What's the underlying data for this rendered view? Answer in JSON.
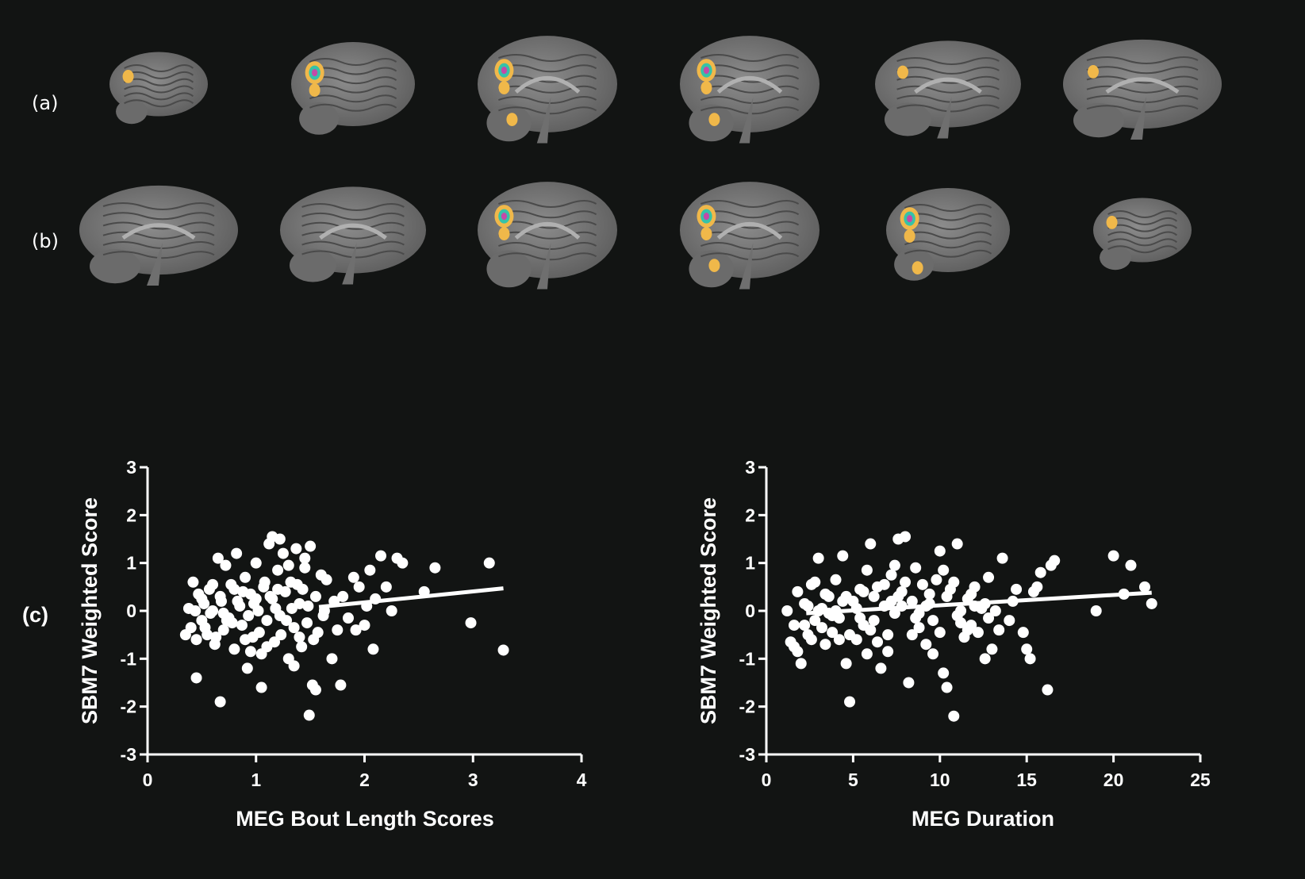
{
  "panels": {
    "a": "(a)",
    "b": "(b)",
    "c": "(c)"
  },
  "colors": {
    "background": "#121413",
    "brain": "#7f7f7f",
    "foreground": "#ffffff",
    "activation_outer": "#f0b84a",
    "activation_mid": "#36c2a8",
    "activation_core": "#c24aa8"
  },
  "brain_rows": [
    {
      "row": "a",
      "slices": [
        {
          "view": "lateral-small",
          "blobs": 1
        },
        {
          "view": "lateral",
          "blobs": 2
        },
        {
          "view": "medial-frontal",
          "blobs": 3
        },
        {
          "view": "medial-frontal",
          "blobs": 3
        },
        {
          "view": "medial",
          "blobs": 1
        },
        {
          "view": "medial-full",
          "blobs": 1
        }
      ]
    },
    {
      "row": "b",
      "slices": [
        {
          "view": "medial-full",
          "blobs": 0
        },
        {
          "view": "medial",
          "blobs": 0
        },
        {
          "view": "medial-frontal",
          "blobs": 2
        },
        {
          "view": "medial-frontal",
          "blobs": 3
        },
        {
          "view": "lateral",
          "blobs": 3
        },
        {
          "view": "lateral-small",
          "blobs": 1
        }
      ]
    }
  ],
  "chart_data": [
    {
      "type": "scatter",
      "xlabel": "MEG Bout Length Scores",
      "ylabel": "SBM7 Weighted Score",
      "xlim": [
        0,
        4
      ],
      "ylim": [
        -3,
        3
      ],
      "xticks": [
        "0",
        "1",
        "2",
        "3",
        "4"
      ],
      "yticks": [
        "-3",
        "-2",
        "-1",
        "0",
        "1",
        "2",
        "3"
      ],
      "trendline": [
        [
          1.58,
          0.08
        ],
        [
          3.28,
          0.47
        ]
      ],
      "points": [
        [
          0.38,
          0.05
        ],
        [
          0.4,
          -0.35
        ],
        [
          0.42,
          0.6
        ],
        [
          0.45,
          -0.6
        ],
        [
          0.47,
          0.35
        ],
        [
          0.5,
          -0.2
        ],
        [
          0.52,
          0.15
        ],
        [
          0.55,
          -0.5
        ],
        [
          0.57,
          0.45
        ],
        [
          0.6,
          0.0
        ],
        [
          0.62,
          -0.7
        ],
        [
          0.65,
          1.1
        ],
        [
          0.67,
          0.3
        ],
        [
          0.7,
          -0.4
        ],
        [
          0.72,
          0.95
        ],
        [
          0.75,
          -0.15
        ],
        [
          0.77,
          0.55
        ],
        [
          0.8,
          -0.8
        ],
        [
          0.82,
          1.2
        ],
        [
          0.85,
          0.1
        ],
        [
          0.87,
          -0.3
        ],
        [
          0.9,
          0.7
        ],
        [
          0.92,
          -1.2
        ],
        [
          0.95,
          0.35
        ],
        [
          0.97,
          -0.55
        ],
        [
          1.0,
          1.0
        ],
        [
          1.02,
          0.0
        ],
        [
          1.05,
          -0.9
        ],
        [
          1.07,
          0.5
        ],
        [
          1.1,
          -0.2
        ],
        [
          1.12,
          1.4
        ],
        [
          1.15,
          0.25
        ],
        [
          1.17,
          -0.65
        ],
        [
          1.2,
          0.85
        ],
        [
          1.22,
          -0.1
        ],
        [
          1.25,
          1.2
        ],
        [
          1.27,
          0.4
        ],
        [
          1.3,
          -1.0
        ],
        [
          1.32,
          0.6
        ],
        [
          1.35,
          -0.35
        ],
        [
          1.37,
          1.3
        ],
        [
          1.4,
          0.15
        ],
        [
          1.42,
          -0.75
        ],
        [
          1.45,
          0.9
        ],
        [
          1.47,
          -0.25
        ],
        [
          1.5,
          1.35
        ],
        [
          1.52,
          -1.55
        ],
        [
          1.55,
          0.3
        ],
        [
          1.57,
          -0.45
        ],
        [
          1.6,
          0.75
        ],
        [
          1.62,
          -0.1
        ],
        [
          1.65,
          0.65
        ],
        [
          1.7,
          -1.0
        ],
        [
          1.72,
          0.2
        ],
        [
          1.75,
          -0.4
        ],
        [
          1.78,
          -1.55
        ],
        [
          1.8,
          0.3
        ],
        [
          1.85,
          -0.15
        ],
        [
          1.9,
          0.7
        ],
        [
          1.92,
          -0.4
        ],
        [
          1.95,
          0.5
        ],
        [
          2.0,
          -0.3
        ],
        [
          2.02,
          0.1
        ],
        [
          2.05,
          0.85
        ],
        [
          2.08,
          -0.8
        ],
        [
          2.1,
          0.25
        ],
        [
          2.15,
          1.15
        ],
        [
          2.2,
          0.5
        ],
        [
          2.25,
          0.0
        ],
        [
          2.3,
          1.1
        ],
        [
          2.35,
          1.0
        ],
        [
          2.55,
          0.4
        ],
        [
          2.65,
          0.9
        ],
        [
          2.98,
          -0.25
        ],
        [
          3.15,
          1.0
        ],
        [
          3.28,
          -0.82
        ],
        [
          0.45,
          -1.4
        ],
        [
          0.67,
          -1.9
        ],
        [
          1.05,
          -1.6
        ],
        [
          1.49,
          -2.18
        ],
        [
          1.55,
          -1.65
        ],
        [
          0.5,
          0.25
        ],
        [
          0.58,
          -0.05
        ],
        [
          0.68,
          0.2
        ],
        [
          0.78,
          -0.25
        ],
        [
          0.88,
          0.4
        ],
        [
          0.98,
          0.15
        ],
        [
          1.08,
          0.6
        ],
        [
          1.18,
          0.05
        ],
        [
          1.28,
          -0.2
        ],
        [
          1.38,
          0.55
        ],
        [
          1.48,
          0.1
        ],
        [
          0.35,
          -0.5
        ],
        [
          0.44,
          0.0
        ],
        [
          0.53,
          -0.35
        ],
        [
          0.63,
          -0.55
        ],
        [
          0.73,
          -0.2
        ],
        [
          0.83,
          0.2
        ],
        [
          0.93,
          -0.1
        ],
        [
          1.03,
          -0.45
        ],
        [
          1.13,
          0.3
        ],
        [
          1.23,
          -0.5
        ],
        [
          1.33,
          0.05
        ],
        [
          1.43,
          0.45
        ],
        [
          1.53,
          -0.6
        ],
        [
          1.63,
          0.0
        ],
        [
          0.6,
          0.55
        ],
        [
          0.7,
          -0.05
        ],
        [
          0.8,
          0.45
        ],
        [
          0.9,
          -0.6
        ],
        [
          1.0,
          0.25
        ],
        [
          1.1,
          -0.75
        ],
        [
          1.2,
          0.45
        ],
        [
          1.3,
          0.95
        ],
        [
          1.4,
          -0.55
        ],
        [
          1.15,
          1.55
        ],
        [
          1.22,
          1.5
        ],
        [
          1.45,
          1.1
        ],
        [
          0.95,
          -0.85
        ],
        [
          1.35,
          -1.15
        ]
      ]
    },
    {
      "type": "scatter",
      "xlabel": "MEG Duration",
      "ylabel": "SBM7 Weighted Score",
      "xlim": [
        0,
        25
      ],
      "ylim": [
        -3,
        3
      ],
      "xticks": [
        "0",
        "5",
        "10",
        "15",
        "20",
        "25"
      ],
      "yticks": [
        "-3",
        "-2",
        "-1",
        "0",
        "1",
        "2",
        "3"
      ],
      "trendline": [
        [
          2.3,
          -0.05
        ],
        [
          22.2,
          0.38
        ]
      ],
      "points": [
        [
          1.2,
          0.0
        ],
        [
          1.4,
          -0.65
        ],
        [
          1.6,
          -0.3
        ],
        [
          1.8,
          0.4
        ],
        [
          2.0,
          -1.1
        ],
        [
          2.2,
          0.15
        ],
        [
          2.4,
          -0.5
        ],
        [
          2.6,
          0.55
        ],
        [
          2.8,
          -0.2
        ],
        [
          3.0,
          1.1
        ],
        [
          3.2,
          0.05
        ],
        [
          3.4,
          -0.7
        ],
        [
          3.6,
          0.3
        ],
        [
          3.8,
          -0.45
        ],
        [
          4.0,
          0.65
        ],
        [
          4.2,
          -0.15
        ],
        [
          4.4,
          1.15
        ],
        [
          4.6,
          -1.1
        ],
        [
          4.8,
          -1.9
        ],
        [
          5.0,
          0.2
        ],
        [
          5.2,
          -0.6
        ],
        [
          5.4,
          0.45
        ],
        [
          5.6,
          -0.3
        ],
        [
          5.8,
          0.85
        ],
        [
          6.0,
          1.4
        ],
        [
          6.2,
          -0.2
        ],
        [
          6.4,
          0.5
        ],
        [
          6.6,
          -1.2
        ],
        [
          6.8,
          0.1
        ],
        [
          7.0,
          -0.5
        ],
        [
          7.2,
          0.75
        ],
        [
          7.4,
          -0.05
        ],
        [
          7.6,
          1.5
        ],
        [
          7.8,
          0.4
        ],
        [
          8.0,
          1.55
        ],
        [
          8.2,
          -1.5
        ],
        [
          8.4,
          0.2
        ],
        [
          8.6,
          0.9
        ],
        [
          8.8,
          -0.35
        ],
        [
          9.0,
          0.55
        ],
        [
          9.2,
          -0.7
        ],
        [
          9.4,
          0.15
        ],
        [
          9.6,
          -0.2
        ],
        [
          9.8,
          0.65
        ],
        [
          10.0,
          1.25
        ],
        [
          10.2,
          -1.3
        ],
        [
          10.4,
          -1.6
        ],
        [
          10.6,
          0.45
        ],
        [
          10.8,
          -2.2
        ],
        [
          11.0,
          1.4
        ],
        [
          11.2,
          0.0
        ],
        [
          11.4,
          -0.55
        ],
        [
          11.6,
          0.25
        ],
        [
          11.8,
          -0.3
        ],
        [
          12.0,
          0.5
        ],
        [
          12.2,
          -0.45
        ],
        [
          12.4,
          0.05
        ],
        [
          12.6,
          -1.0
        ],
        [
          12.8,
          0.7
        ],
        [
          13.0,
          -0.8
        ],
        [
          13.2,
          0.0
        ],
        [
          13.6,
          1.1
        ],
        [
          14.0,
          -0.2
        ],
        [
          14.4,
          0.45
        ],
        [
          14.8,
          -0.45
        ],
        [
          15.0,
          -0.8
        ],
        [
          15.2,
          -1.0
        ],
        [
          15.4,
          0.4
        ],
        [
          15.8,
          0.8
        ],
        [
          16.2,
          -1.65
        ],
        [
          16.4,
          0.95
        ],
        [
          16.6,
          1.05
        ],
        [
          19.0,
          0.0
        ],
        [
          20.0,
          1.15
        ],
        [
          20.6,
          0.35
        ],
        [
          21.0,
          0.95
        ],
        [
          21.8,
          0.5
        ],
        [
          22.2,
          0.15
        ],
        [
          1.8,
          -0.85
        ],
        [
          2.6,
          -0.6
        ],
        [
          3.4,
          0.35
        ],
        [
          4.2,
          -0.6
        ],
        [
          5.4,
          -0.15
        ],
        [
          6.2,
          0.3
        ],
        [
          7.0,
          -0.85
        ],
        [
          7.8,
          0.1
        ],
        [
          8.6,
          -0.15
        ],
        [
          9.4,
          0.35
        ],
        [
          10.2,
          0.85
        ],
        [
          11.0,
          -0.1
        ],
        [
          11.8,
          0.35
        ],
        [
          12.6,
          0.15
        ],
        [
          2.2,
          -0.3
        ],
        [
          3.0,
          0.0
        ],
        [
          3.8,
          -0.1
        ],
        [
          4.6,
          0.3
        ],
        [
          5.2,
          0.05
        ],
        [
          6.0,
          -0.4
        ],
        [
          6.8,
          0.55
        ],
        [
          7.6,
          0.3
        ],
        [
          8.4,
          -0.5
        ],
        [
          9.2,
          0.1
        ],
        [
          10.0,
          -0.45
        ],
        [
          10.8,
          0.6
        ],
        [
          11.6,
          -0.4
        ],
        [
          1.6,
          -0.75
        ],
        [
          2.4,
          0.1
        ],
        [
          3.2,
          -0.35
        ],
        [
          4.0,
          0.0
        ],
        [
          4.8,
          -0.5
        ],
        [
          5.6,
          0.4
        ],
        [
          6.4,
          -0.65
        ],
        [
          7.2,
          0.2
        ],
        [
          8.0,
          0.6
        ],
        [
          8.8,
          -0.05
        ],
        [
          9.6,
          -0.9
        ],
        [
          10.4,
          0.3
        ],
        [
          11.2,
          -0.25
        ],
        [
          12.0,
          0.1
        ],
        [
          12.8,
          -0.15
        ],
        [
          2.8,
          0.6
        ],
        [
          3.6,
          -0.05
        ],
        [
          4.4,
          0.2
        ],
        [
          5.8,
          -0.9
        ],
        [
          7.4,
          0.95
        ],
        [
          13.4,
          -0.4
        ],
        [
          14.2,
          0.2
        ],
        [
          15.6,
          0.5
        ]
      ]
    }
  ]
}
